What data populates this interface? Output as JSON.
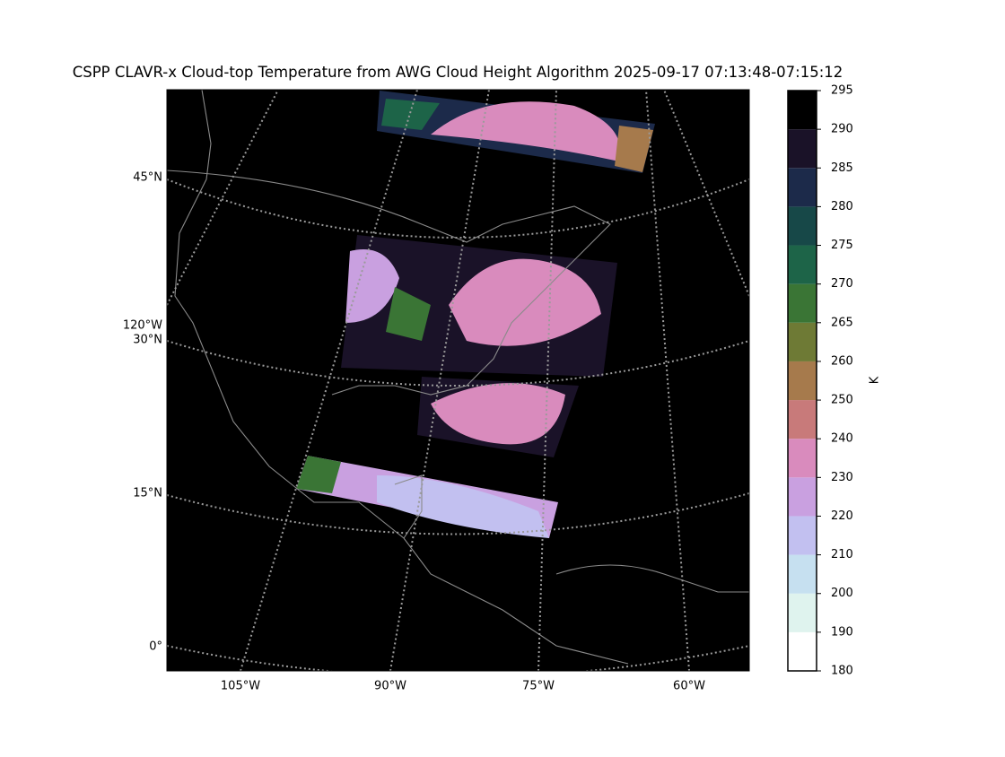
{
  "title": "CSPP CLAVR-x Cloud-top Temperature from AWG Cloud Height Algorithm 2025-09-17 07:13:48-07:15:12",
  "map": {
    "lat_labels": [
      "45°N",
      "120°W",
      "30°N",
      "15°N",
      "0°"
    ],
    "lon_labels": [
      "105°W",
      "90°W",
      "75°W",
      "60°W"
    ]
  },
  "colorbar": {
    "label": "K",
    "ticks": [
      180,
      190,
      200,
      210,
      220,
      230,
      240,
      250,
      260,
      265,
      270,
      275,
      280,
      285,
      290,
      295
    ],
    "colors": [
      "#ffffff",
      "#dff3ee",
      "#c6e0f0",
      "#c2c0f0",
      "#c9a0e0",
      "#d98bbd",
      "#c87a7a",
      "#a67a4c",
      "#6e7a35",
      "#3a7535",
      "#1d6448",
      "#174848",
      "#1c2a4a",
      "#1a1228",
      "#000000"
    ]
  }
}
